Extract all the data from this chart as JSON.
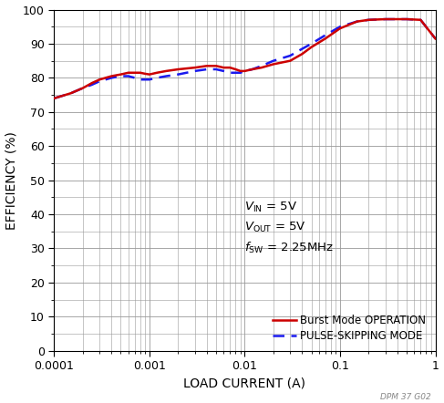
{
  "title": "",
  "xlabel": "LOAD CURRENT (A)",
  "ylabel": "EFFICIENCY (%)",
  "xlim": [
    0.0001,
    1
  ],
  "ylim": [
    0,
    100
  ],
  "yticks": [
    0,
    10,
    20,
    30,
    40,
    50,
    60,
    70,
    80,
    90,
    100
  ],
  "burst_color": "#cc0000",
  "pulse_color": "#1a1aee",
  "burst_x": [
    0.0001,
    0.00015,
    0.0002,
    0.00025,
    0.0003,
    0.0004,
    0.0005,
    0.0006,
    0.0007,
    0.0008,
    0.0009,
    0.001,
    0.0012,
    0.0015,
    0.002,
    0.003,
    0.004,
    0.005,
    0.006,
    0.007,
    0.008,
    0.009,
    0.01,
    0.012,
    0.015,
    0.02,
    0.03,
    0.04,
    0.05,
    0.07,
    0.1,
    0.15,
    0.2,
    0.3,
    0.5,
    0.7,
    1.0
  ],
  "burst_y": [
    74,
    75.5,
    77,
    78.5,
    79.5,
    80.5,
    81,
    81.5,
    81.5,
    81.5,
    81.2,
    81.0,
    81.5,
    82,
    82.5,
    83,
    83.5,
    83.5,
    83,
    83,
    82.5,
    82,
    82,
    82.5,
    83,
    84,
    85,
    87,
    89,
    91.5,
    94.5,
    96.5,
    97,
    97.2,
    97.2,
    97,
    91.5
  ],
  "pulse_x": [
    0.0001,
    0.00015,
    0.0002,
    0.00025,
    0.0003,
    0.0004,
    0.0005,
    0.0006,
    0.0007,
    0.0008,
    0.0009,
    0.001,
    0.0012,
    0.0015,
    0.002,
    0.003,
    0.004,
    0.005,
    0.006,
    0.007,
    0.008,
    0.009,
    0.01,
    0.012,
    0.015,
    0.02,
    0.03,
    0.04,
    0.05,
    0.07,
    0.1,
    0.15,
    0.2,
    0.3,
    0.5,
    0.7,
    1.0
  ],
  "pulse_y": [
    74,
    75.5,
    77,
    78,
    79,
    80,
    80.5,
    80.5,
    80,
    79.5,
    79.5,
    79.5,
    80,
    80.5,
    81,
    82,
    82.5,
    82.5,
    82,
    81.5,
    81.5,
    81.5,
    82,
    82.5,
    83.5,
    85,
    86.5,
    88.5,
    90,
    92.5,
    95,
    96.5,
    97,
    97.2,
    97.2,
    97,
    91.5
  ],
  "watermark": "DPM 37 G02",
  "background_color": "#ffffff",
  "grid_color": "#999999",
  "tick_fontsize": 9,
  "label_fontsize": 10,
  "annot_fontsize": 9.5,
  "legend_fontsize": 8.5
}
